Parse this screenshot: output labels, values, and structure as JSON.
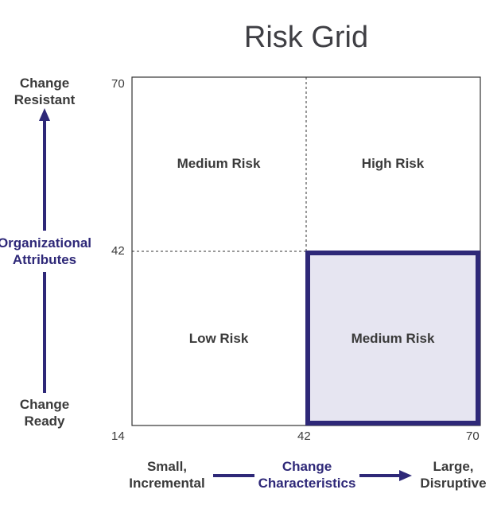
{
  "title": "Risk Grid",
  "colors": {
    "accent": "#2e2878",
    "highlight_fill": "#e6e5f1",
    "grid_line": "#333333"
  },
  "y_axis": {
    "top_label": "Change\nResistant",
    "middle_label": "Organizational\nAttributes",
    "bottom_label": "Change\nReady",
    "ticks": [
      "70",
      "42",
      "14"
    ]
  },
  "x_axis": {
    "left_label": "Small,\nIncremental",
    "middle_label": "Change\nCharacteristics",
    "right_label": "Large,\nDisruptive",
    "ticks": [
      "42",
      "70"
    ]
  },
  "quadrants": {
    "top_left": "Medium Risk",
    "top_right": "High Risk",
    "bottom_left": "Low Risk",
    "bottom_right": "Medium Risk"
  },
  "highlighted_quadrant": "bottom_right"
}
